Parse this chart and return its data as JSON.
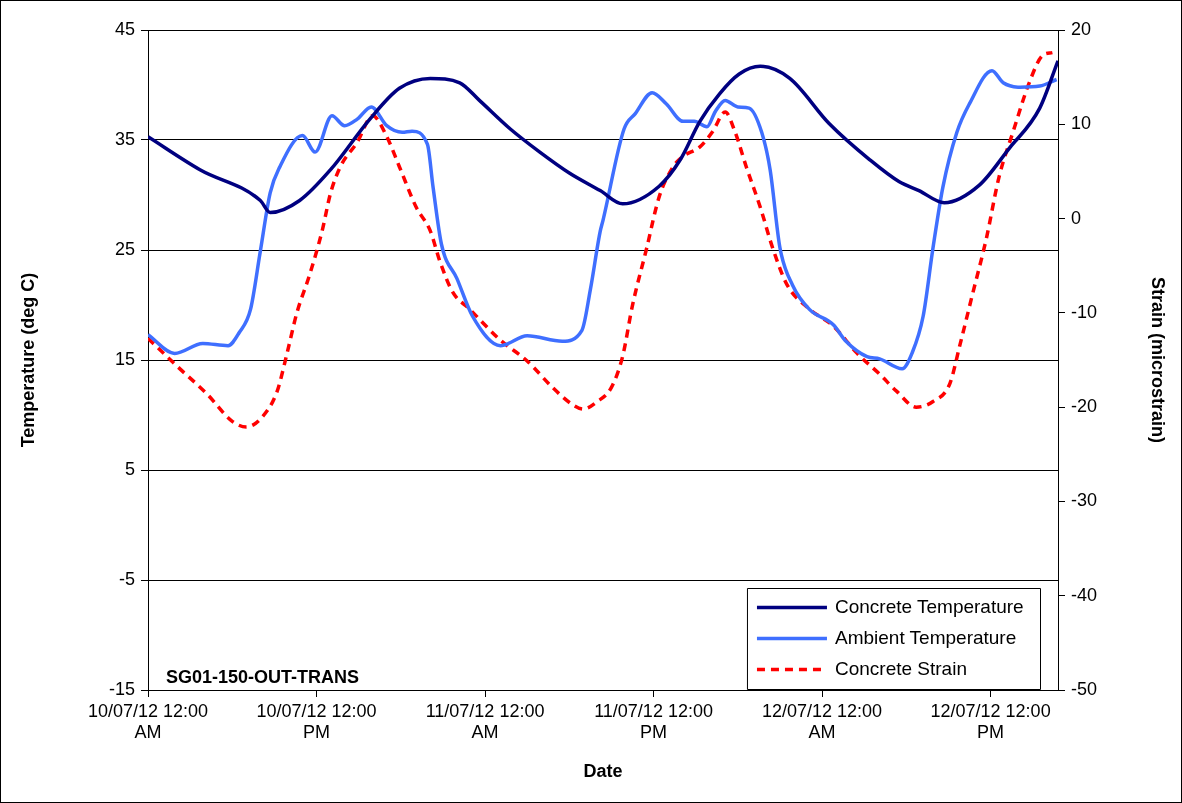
{
  "chart_data": {
    "type": "line",
    "xlabel": "Date",
    "ylabel": "Temperature (deg C)",
    "y2label": "Strain (microstrain)",
    "annotations": [
      "SG01-150-OUT-TRANS"
    ],
    "xlim": [
      "--07-10T00:00",
      "--07-12T16:48"
    ],
    "xticks": [
      {
        "value": "--07-10T00:00",
        "label": "10/07/12 12:00\nAM"
      },
      {
        "value": "--07-10T12:00",
        "label": "10/07/12 12:00\nPM"
      },
      {
        "value": "--07-11T00:00",
        "label": "11/07/12 12:00\nAM"
      },
      {
        "value": "--07-11T12:00",
        "label": "11/07/12 12:00\nPM"
      },
      {
        "value": "--07-12T00:00",
        "label": "12/07/12 12:00\nAM"
      },
      {
        "value": "--07-12T12:00",
        "label": "12/07/12 12:00\nPM"
      }
    ],
    "ylim": [
      -15,
      45
    ],
    "yticks": [
      -15,
      -5,
      5,
      15,
      25,
      35,
      45
    ],
    "y2lim": [
      -50,
      20
    ],
    "y2ticks": [
      -50,
      -40,
      -30,
      -20,
      -10,
      0,
      10,
      20
    ],
    "grid": "y",
    "legend": "bottom right",
    "marker": "none",
    "series": [
      {
        "name": "Concrete Temperature",
        "color": "#000080",
        "line_style": "solid",
        "x": [
          "--07-10T00:00",
          "--07-10T03:42",
          "--07-10T08:00",
          "--07-10T08:42",
          "--07-10T10:48",
          "--07-10T13:00",
          "--07-10T15:48",
          "--07-10T17:54",
          "--07-10T20:06",
          "--07-10T22:12",
          "--07-10T23:36",
          "--07-11T01:48",
          "--07-11T03:54",
          "--07-11T06:00",
          "--07-11T08:12",
          "--07-11T09:48",
          "--07-11T12:24",
          "--07-11T13:54",
          "--07-11T15:18",
          "--07-11T16:42",
          "--07-11T18:06",
          "--07-11T19:36",
          "--07-11T21:42",
          "--07-12T00:30",
          "--07-12T03:24",
          "--07-12T05:30",
          "--07-12T06:54",
          "--07-12T08:42",
          "--07-12T11:12",
          "--07-12T13:18",
          "--07-12T15:30",
          "--07-12T16:48"
        ],
        "values": [
          35.3,
          32.3,
          29.5,
          28.4,
          29.5,
          32.3,
          36.9,
          39.7,
          40.6,
          40.2,
          38.6,
          36.0,
          33.9,
          32.0,
          30.4,
          29.2,
          30.8,
          33.2,
          36.7,
          39.2,
          41.0,
          41.7,
          40.6,
          36.5,
          33.2,
          31.2,
          30.4,
          29.3,
          30.9,
          34.2,
          37.9,
          42.2
        ]
      },
      {
        "name": "Ambient Temperature",
        "color": "#3f6fff",
        "line_style": "solid",
        "x": [
          "--07-10T00:00",
          "--07-10T01:54",
          "--07-10T03:54",
          "--07-10T05:42",
          "--07-10T06:30",
          "--07-10T07:18",
          "--07-10T08:00",
          "--07-10T08:42",
          "--07-10T09:24",
          "--07-10T11:00",
          "--07-10T11:54",
          "--07-10T13:06",
          "--07-10T14:00",
          "--07-10T14:54",
          "--07-10T15:54",
          "--07-10T17:00",
          "--07-10T18:06",
          "--07-10T18:48",
          "--07-10T19:54",
          "--07-10T20:18",
          "--07-10T20:54",
          "--07-10T22:00",
          "--07-10T23:06",
          "--07-11T01:06",
          "--07-11T03:00",
          "--07-11T05:30",
          "--07-11T06:54",
          "--07-11T07:30",
          "--07-11T08:12",
          "--07-11T08:24",
          "--07-11T09:54",
          "--07-11T10:42",
          "--07-11T11:54",
          "--07-11T12:54",
          "--07-11T14:06",
          "--07-11T14:54",
          "--07-11T15:48",
          "--07-11T16:24",
          "--07-11T17:06",
          "--07-11T18:00",
          "--07-11T18:48",
          "--07-11T19:42",
          "--07-11T20:18",
          "--07-11T21:00",
          "--07-11T21:54",
          "--07-11T23:06",
          "--07-12T00:48",
          "--07-12T01:42",
          "--07-12T03:12",
          "--07-12T04:06",
          "--07-12T05:42",
          "--07-12T06:24",
          "--07-12T07:12",
          "--07-12T07:54",
          "--07-12T08:36",
          "--07-12T09:36",
          "--07-12T10:30",
          "--07-12T12:06",
          "--07-12T12:54",
          "--07-12T14:06",
          "--07-12T15:30",
          "--07-12T16:42"
        ],
        "values": [
          17.3,
          15.6,
          16.5,
          16.3,
          17.5,
          19.6,
          24.9,
          30.2,
          32.6,
          35.4,
          33.9,
          37.2,
          36.3,
          36.9,
          38.0,
          36.3,
          35.7,
          35.8,
          34.6,
          30.7,
          25.5,
          22.4,
          19.0,
          16.3,
          17.2,
          16.7,
          17.7,
          21.4,
          26.7,
          27.7,
          36.0,
          37.4,
          39.3,
          38.3,
          36.7,
          36.7,
          36.2,
          37.6,
          38.6,
          38.0,
          37.9,
          35.7,
          32.3,
          25.2,
          21.8,
          19.6,
          18.2,
          16.7,
          15.3,
          15.1,
          14.2,
          15.6,
          19.0,
          25.2,
          30.7,
          35.7,
          38.3,
          41.3,
          40.2,
          39.8,
          39.9,
          40.5
        ]
      },
      {
        "name": "Concrete Strain",
        "color": "#ff0000",
        "line_style": "dashed",
        "axis": "y2",
        "x": [
          "--07-10T00:00",
          "--07-10T02:06",
          "--07-10T04:12",
          "--07-10T06:00",
          "--07-10T07:00",
          "--07-10T08:06",
          "--07-10T09:12",
          "--07-10T09:54",
          "--07-10T10:36",
          "--07-10T11:30",
          "--07-10T12:24",
          "--07-10T13:00",
          "--07-10T13:42",
          "--07-10T14:54",
          "--07-10T16:00",
          "--07-10T17:00",
          "--07-10T17:54",
          "--07-10T19:06",
          "--07-10T20:06",
          "--07-10T20:48",
          "--07-10T21:42",
          "--07-10T22:54",
          "--07-11T01:06",
          "--07-11T03:00",
          "--07-11T04:48",
          "--07-11T06:12",
          "--07-11T07:00",
          "--07-11T08:00",
          "--07-11T09:00",
          "--07-11T09:48",
          "--07-11T10:30",
          "--07-11T11:30",
          "--07-11T12:24",
          "--07-11T13:24",
          "--07-11T14:06",
          "--07-11T15:18",
          "--07-11T16:12",
          "--07-11T17:06",
          "--07-11T17:48",
          "--07-11T18:36",
          "--07-11T19:36",
          "--07-11T20:30",
          "--07-11T21:30",
          "--07-11T23:06",
          "--07-12T00:48",
          "--07-12T02:30",
          "--07-12T04:06",
          "--07-12T05:18",
          "--07-12T06:42",
          "--07-12T07:54",
          "--07-12T09:06",
          "--07-12T09:48",
          "--07-12T10:42",
          "--07-12T11:42",
          "--07-12T12:36",
          "--07-12T13:36",
          "--07-12T14:48",
          "--07-12T15:42",
          "--07-12T16:24"
        ],
        "values": [
          -12.7,
          -15.7,
          -18.6,
          -21.5,
          -22.1,
          -21.1,
          -18.3,
          -14.3,
          -10.0,
          -6.0,
          -1.3,
          2.7,
          5.5,
          8.1,
          10.9,
          8.7,
          5.5,
          1.2,
          -1.3,
          -4.6,
          -7.8,
          -9.6,
          -12.9,
          -15.1,
          -17.9,
          -19.7,
          -20.2,
          -19.4,
          -17.9,
          -14.6,
          -9.2,
          -3.2,
          2.3,
          5.5,
          6.6,
          7.6,
          9.2,
          11.3,
          9.2,
          5.5,
          1.2,
          -3.2,
          -7.0,
          -9.6,
          -11.4,
          -14.3,
          -16.5,
          -18.3,
          -20.0,
          -19.4,
          -17.5,
          -13.5,
          -8.1,
          -2.1,
          4.4,
          9.2,
          14.6,
          17.3,
          17.6
        ]
      }
    ]
  }
}
